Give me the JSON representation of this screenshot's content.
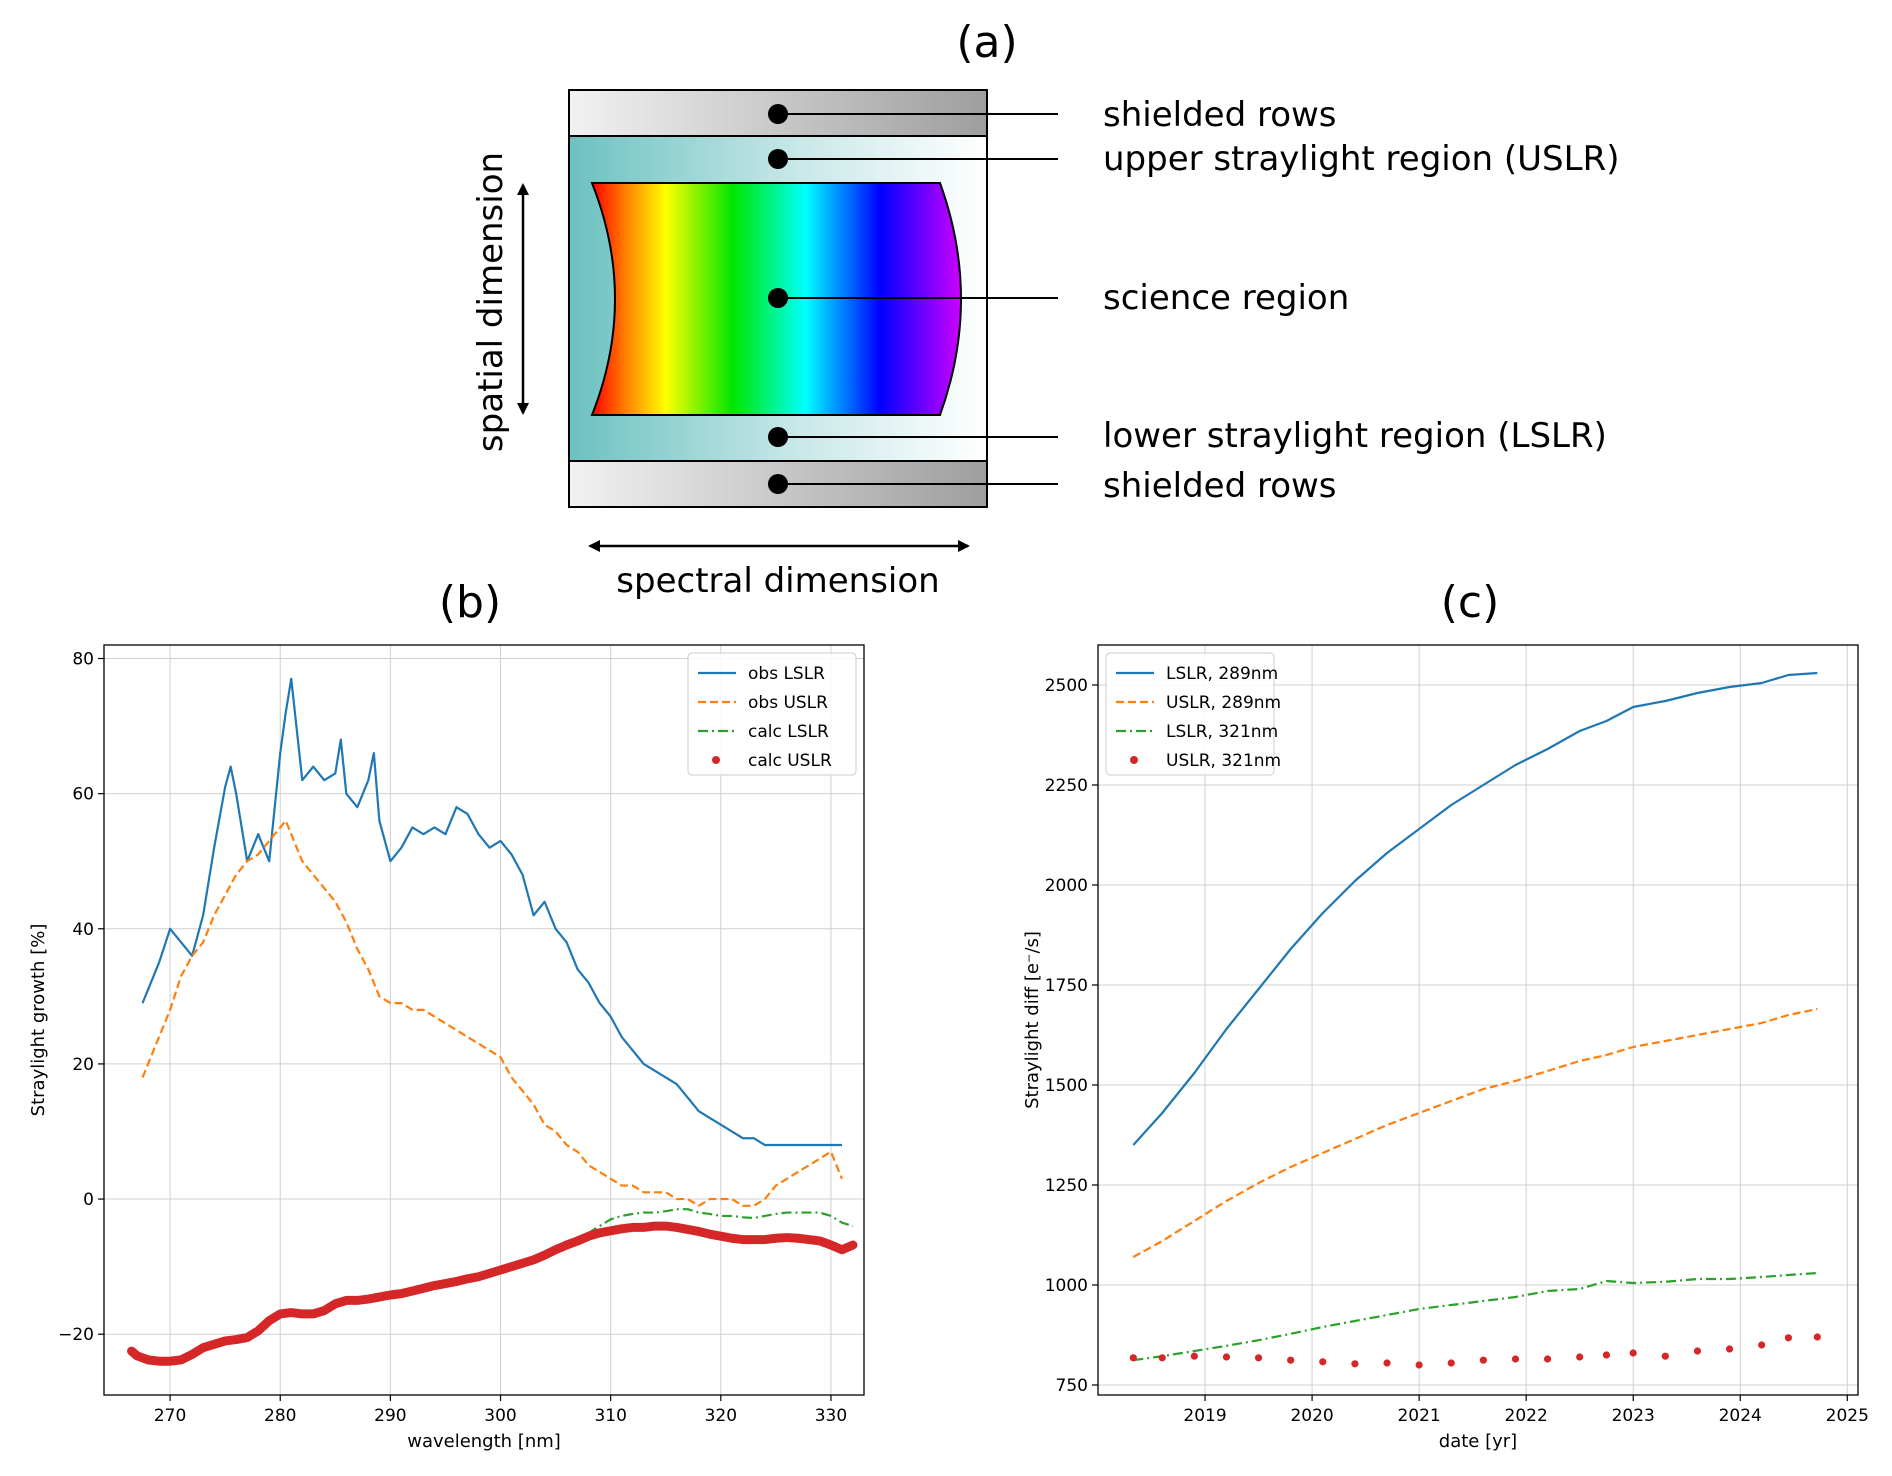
{
  "panel_a": {
    "label": "(a)",
    "callouts": [
      "shielded rows",
      "upper straylight region (USLR)",
      "science region",
      "lower straylight region (LSLR)",
      "shielded rows"
    ],
    "spatial_label": "spatial dimension",
    "spectral_label": "spectral dimension"
  },
  "chart_data": [
    {
      "panel": "(b)",
      "type": "line",
      "xlabel": "wavelength [nm]",
      "ylabel": "Straylight growth [%]",
      "xlim": [
        264,
        333
      ],
      "ylim": [
        -29,
        82
      ],
      "xticks": [
        270,
        280,
        290,
        300,
        310,
        320,
        330
      ],
      "yticks": [
        -20,
        0,
        20,
        40,
        60,
        80
      ],
      "grid": true,
      "legend": "top-right",
      "series": [
        {
          "name": "obs LSLR",
          "color": "#1f77b4",
          "style": "solid",
          "x": [
            267.5,
            268,
            268.5,
            269,
            270,
            271,
            272,
            273,
            274,
            275,
            275.5,
            276,
            277,
            278,
            279,
            280,
            280.5,
            281,
            282,
            283,
            284,
            285,
            285.5,
            286,
            287,
            288,
            288.5,
            289,
            290,
            291,
            292,
            293,
            294,
            295,
            296,
            297,
            298,
            299,
            300,
            301,
            302,
            303,
            304,
            305,
            306,
            307,
            308,
            309,
            310,
            311,
            312,
            313,
            314,
            315,
            316,
            317,
            318,
            319,
            320,
            321,
            322,
            323,
            324,
            325,
            326,
            327,
            328,
            329,
            330,
            331
          ],
          "y": [
            29,
            31,
            33,
            35,
            40,
            38,
            36,
            42,
            52,
            61,
            64,
            60,
            50,
            54,
            50,
            66,
            72,
            77,
            62,
            64,
            62,
            63,
            68,
            60,
            58,
            62,
            66,
            56,
            50,
            52,
            55,
            54,
            55,
            54,
            58,
            57,
            54,
            52,
            53,
            51,
            48,
            42,
            44,
            40,
            38,
            34,
            32,
            29,
            27,
            24,
            22,
            20,
            19,
            18,
            17,
            15,
            13,
            12,
            11,
            10,
            9,
            9,
            8,
            8,
            8,
            8,
            8,
            8,
            8,
            8
          ]
        },
        {
          "name": "obs USLR",
          "color": "#ff7f0e",
          "style": "dashed",
          "x": [
            267.5,
            268,
            269,
            270,
            271,
            272,
            273,
            274,
            275,
            276,
            277,
            278,
            279,
            280,
            280.5,
            281,
            282,
            283,
            284,
            285,
            286,
            287,
            288,
            289,
            290,
            291,
            292,
            293,
            294,
            295,
            296,
            297,
            298,
            299,
            300,
            301,
            302,
            303,
            304,
            305,
            306,
            307,
            308,
            309,
            310,
            311,
            312,
            313,
            314,
            315,
            316,
            317,
            318,
            319,
            320,
            321,
            322,
            323,
            324,
            325,
            326,
            327,
            328,
            329,
            330,
            331
          ],
          "y": [
            18,
            20,
            24,
            28,
            33,
            36,
            38,
            42,
            45,
            48,
            50,
            51,
            53,
            55,
            56,
            54,
            50,
            48,
            46,
            44,
            41,
            37,
            34,
            30,
            29,
            29,
            28,
            28,
            27,
            26,
            25,
            24,
            23,
            22,
            21,
            18,
            16,
            14,
            11,
            10,
            8,
            7,
            5,
            4,
            3,
            2,
            2,
            1,
            1,
            1,
            0,
            0,
            -1,
            0,
            0,
            0,
            -1,
            -1,
            0,
            2,
            3,
            4,
            5,
            6,
            7,
            3
          ]
        },
        {
          "name": "calc LSLR",
          "color": "#2ca02c",
          "style": "dashdot",
          "x": [
            267,
            268,
            269,
            270,
            271,
            272,
            273,
            274,
            275,
            276,
            277,
            278,
            279,
            280,
            281,
            282,
            283,
            284,
            285,
            286,
            287,
            288,
            289,
            290,
            291,
            292,
            293,
            294,
            295,
            296,
            297,
            298,
            299,
            300,
            301,
            302,
            303,
            304,
            305,
            306,
            307,
            308,
            309,
            310,
            311,
            312,
            313,
            314,
            315,
            316,
            317,
            318,
            319,
            320,
            321,
            322,
            323,
            324,
            325,
            326,
            327,
            328,
            329,
            330,
            331,
            332
          ],
          "y": [
            -23,
            -23.5,
            -24,
            -24,
            -24,
            -23.5,
            -22.5,
            -21.5,
            -21,
            -20.8,
            -20.5,
            -19.5,
            -18,
            -17,
            -16.8,
            -17,
            -17,
            -16.5,
            -15.5,
            -15,
            -15,
            -15,
            -14.8,
            -14.5,
            -14.2,
            -14,
            -13.5,
            -13.2,
            -12.8,
            -12.5,
            -12.2,
            -11.8,
            -11.5,
            -11,
            -10.5,
            -10,
            -9.5,
            -8.8,
            -8,
            -7,
            -6,
            -5,
            -4,
            -3,
            -2.5,
            -2.2,
            -2,
            -2,
            -1.8,
            -1.5,
            -1.5,
            -2,
            -2.2,
            -2.5,
            -2.5,
            -2.7,
            -2.8,
            -2.5,
            -2.2,
            -2,
            -2,
            -2,
            -2,
            -2.5,
            -3.5,
            -4
          ]
        },
        {
          "name": "calc USLR",
          "color": "#d62728",
          "style": "dotted-thick",
          "x": [
            266.5,
            267,
            268,
            269,
            270,
            271,
            272,
            273,
            274,
            275,
            276,
            277,
            278,
            279,
            280,
            281,
            282,
            283,
            284,
            285,
            286,
            287,
            288,
            289,
            290,
            291,
            292,
            293,
            294,
            295,
            296,
            297,
            298,
            299,
            300,
            301,
            302,
            303,
            304,
            305,
            306,
            307,
            308,
            309,
            310,
            311,
            312,
            313,
            314,
            315,
            316,
            317,
            318,
            319,
            320,
            321,
            322,
            323,
            324,
            325,
            326,
            327,
            328,
            329,
            330,
            331,
            332
          ],
          "y": [
            -22.5,
            -23.2,
            -23.8,
            -24,
            -24,
            -23.8,
            -23,
            -22,
            -21.5,
            -21,
            -20.8,
            -20.5,
            -19.5,
            -18,
            -17,
            -16.8,
            -17,
            -17,
            -16.5,
            -15.5,
            -15,
            -15,
            -14.8,
            -14.5,
            -14.2,
            -14,
            -13.6,
            -13.2,
            -12.8,
            -12.5,
            -12.2,
            -11.8,
            -11.5,
            -11,
            -10.5,
            -10,
            -9.5,
            -9,
            -8.3,
            -7.5,
            -6.8,
            -6.2,
            -5.5,
            -5,
            -4.7,
            -4.4,
            -4.2,
            -4.2,
            -4,
            -4,
            -4.2,
            -4.5,
            -4.8,
            -5.2,
            -5.5,
            -5.8,
            -6,
            -6,
            -6,
            -5.8,
            -5.7,
            -5.8,
            -6,
            -6.2,
            -6.8,
            -7.5,
            -6.8
          ]
        }
      ]
    },
    {
      "panel": "(c)",
      "type": "line",
      "xlabel": "date [yr]",
      "ylabel": "Straylight diff [e⁻/s]",
      "xlim": [
        2018.0,
        2025.1
      ],
      "ylim": [
        725,
        2600
      ],
      "xticks": [
        2019,
        2020,
        2021,
        2022,
        2023,
        2024,
        2025
      ],
      "yticks": [
        750,
        1000,
        1250,
        1500,
        1750,
        2000,
        2250,
        2500
      ],
      "grid": true,
      "legend": "top-left",
      "series": [
        {
          "name": "LSLR, 289nm",
          "color": "#1f77b4",
          "style": "solid",
          "x": [
            2018.33,
            2018.6,
            2018.9,
            2019.2,
            2019.5,
            2019.8,
            2020.1,
            2020.4,
            2020.7,
            2021.0,
            2021.3,
            2021.6,
            2021.9,
            2022.2,
            2022.5,
            2022.75,
            2023.0,
            2023.3,
            2023.6,
            2023.9,
            2024.2,
            2024.45,
            2024.72
          ],
          "y": [
            1350,
            1430,
            1530,
            1640,
            1740,
            1840,
            1930,
            2010,
            2080,
            2140,
            2200,
            2250,
            2300,
            2340,
            2385,
            2410,
            2445,
            2460,
            2480,
            2495,
            2505,
            2525,
            2530
          ]
        },
        {
          "name": "USLR, 289nm",
          "color": "#ff7f0e",
          "style": "dashed",
          "x": [
            2018.33,
            2018.6,
            2018.9,
            2019.2,
            2019.5,
            2019.8,
            2020.1,
            2020.4,
            2020.7,
            2021.0,
            2021.3,
            2021.6,
            2021.9,
            2022.2,
            2022.5,
            2022.75,
            2023.0,
            2023.3,
            2023.6,
            2023.9,
            2024.2,
            2024.45,
            2024.72
          ],
          "y": [
            1070,
            1110,
            1160,
            1210,
            1255,
            1295,
            1330,
            1365,
            1400,
            1430,
            1460,
            1490,
            1510,
            1535,
            1560,
            1575,
            1595,
            1610,
            1625,
            1640,
            1655,
            1675,
            1690
          ]
        },
        {
          "name": "LSLR, 321nm",
          "color": "#2ca02c",
          "style": "dashdot",
          "x": [
            2018.33,
            2018.6,
            2018.9,
            2019.2,
            2019.5,
            2019.8,
            2020.1,
            2020.4,
            2020.7,
            2021.0,
            2021.3,
            2021.6,
            2021.9,
            2022.2,
            2022.5,
            2022.75,
            2023.0,
            2023.3,
            2023.6,
            2023.9,
            2024.2,
            2024.45,
            2024.72
          ],
          "y": [
            812,
            822,
            835,
            848,
            862,
            878,
            895,
            910,
            925,
            940,
            950,
            960,
            970,
            985,
            990,
            1010,
            1005,
            1008,
            1015,
            1015,
            1020,
            1025,
            1030
          ]
        },
        {
          "name": "USLR, 321nm",
          "color": "#d62728",
          "style": "dots",
          "x": [
            2018.33,
            2018.6,
            2018.9,
            2019.2,
            2019.5,
            2019.8,
            2020.1,
            2020.4,
            2020.7,
            2021.0,
            2021.3,
            2021.6,
            2021.9,
            2022.2,
            2022.5,
            2022.75,
            2023.0,
            2023.3,
            2023.6,
            2023.9,
            2024.2,
            2024.45,
            2024.72
          ],
          "y": [
            818,
            818,
            822,
            820,
            818,
            812,
            808,
            803,
            805,
            800,
            805,
            812,
            815,
            815,
            820,
            825,
            830,
            822,
            835,
            840,
            850,
            868,
            870
          ]
        }
      ]
    }
  ]
}
